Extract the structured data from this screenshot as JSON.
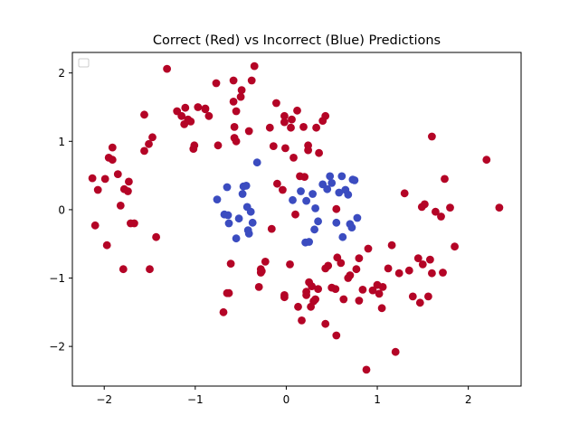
{
  "chart_data": {
    "type": "scatter",
    "title": "Correct (Red) vs Incorrect (Blue) Predictions",
    "xlabel": "",
    "ylabel": "",
    "xlim": [
      -2.35,
      2.58
    ],
    "ylim": [
      -2.58,
      2.3
    ],
    "xticks": [
      -2,
      -1,
      0,
      1,
      2
    ],
    "yticks": [
      -2,
      -1,
      0,
      1,
      2
    ],
    "grid": false,
    "legend": {
      "placement": "top-left",
      "entries": []
    },
    "colors": {
      "correct": "#b40426",
      "incorrect": "#3b4cc0"
    },
    "series": [
      {
        "values": [
          [
            -2.13,
            0.46
          ],
          [
            -2.1,
            -0.23
          ],
          [
            -2.07,
            0.29
          ],
          [
            -1.99,
            0.45
          ],
          [
            -1.97,
            -0.52
          ],
          [
            -1.95,
            0.76
          ],
          [
            -1.91,
            0.73
          ],
          [
            -1.91,
            0.91
          ],
          [
            -1.85,
            0.52
          ],
          [
            -1.82,
            0.06
          ],
          [
            -1.79,
            -0.87
          ],
          [
            -1.78,
            0.3
          ],
          [
            -1.74,
            0.27
          ],
          [
            -1.73,
            0.41
          ],
          [
            -1.71,
            -0.2
          ],
          [
            -1.67,
            -0.2
          ],
          [
            -1.56,
            1.39
          ],
          [
            -1.56,
            0.86
          ],
          [
            -1.51,
            0.96
          ],
          [
            -1.5,
            -0.87
          ],
          [
            -1.47,
            1.06
          ],
          [
            -1.43,
            -0.4
          ],
          [
            -1.31,
            2.06
          ],
          [
            -1.2,
            1.44
          ],
          [
            -1.15,
            1.37
          ],
          [
            -1.12,
            1.25
          ],
          [
            -1.11,
            1.49
          ],
          [
            -1.08,
            1.32
          ],
          [
            -1.05,
            1.29
          ],
          [
            -1.02,
            0.89
          ],
          [
            -1.01,
            0.94
          ],
          [
            -0.97,
            1.5
          ],
          [
            -0.89,
            1.47
          ],
          [
            -0.89,
            1.48
          ],
          [
            -0.85,
            1.37
          ],
          [
            -0.77,
            1.85
          ],
          [
            -0.75,
            0.94
          ],
          [
            -0.69,
            -1.5
          ],
          [
            -0.63,
            -1.22
          ],
          [
            -0.61,
            -0.79
          ],
          [
            -0.58,
            1.89
          ],
          [
            -0.58,
            1.58
          ],
          [
            -0.57,
            1.21
          ],
          [
            -0.57,
            1.05
          ],
          [
            -0.55,
            1.0
          ],
          [
            -0.55,
            1.44
          ],
          [
            -0.5,
            1.65
          ],
          [
            -0.49,
            1.75
          ],
          [
            -0.38,
            1.89
          ],
          [
            -0.35,
            2.1
          ],
          [
            -0.3,
            -1.13
          ],
          [
            -0.28,
            -0.87
          ],
          [
            -0.28,
            -0.92
          ],
          [
            -0.23,
            -0.76
          ],
          [
            -0.18,
            1.2
          ],
          [
            -0.16,
            -0.28
          ],
          [
            -0.14,
            0.93
          ],
          [
            -0.11,
            1.56
          ],
          [
            -0.1,
            0.38
          ],
          [
            -0.04,
            0.29
          ],
          [
            -0.02,
            1.37
          ],
          [
            -0.02,
            1.28
          ],
          [
            -0.01,
            0.9
          ],
          [
            -0.02,
            -1.28
          ],
          [
            -0.02,
            -1.25
          ],
          [
            0.04,
            -0.8
          ],
          [
            0.05,
            1.2
          ],
          [
            0.06,
            1.32
          ],
          [
            0.08,
            0.76
          ],
          [
            0.1,
            -0.07
          ],
          [
            0.12,
            1.45
          ],
          [
            0.15,
            0.49
          ],
          [
            0.19,
            1.21
          ],
          [
            0.2,
            0.48
          ],
          [
            0.22,
            -1.2
          ],
          [
            0.24,
            0.87
          ],
          [
            0.24,
            0.94
          ],
          [
            0.25,
            -1.06
          ],
          [
            0.27,
            -1.42
          ],
          [
            0.28,
            -1.12
          ],
          [
            0.3,
            -1.34
          ],
          [
            0.32,
            -1.31
          ],
          [
            0.33,
            1.2
          ],
          [
            0.36,
            0.83
          ],
          [
            0.4,
            1.3
          ],
          [
            0.43,
            1.37
          ],
          [
            0.43,
            -0.86
          ],
          [
            0.46,
            -0.82
          ],
          [
            0.5,
            -1.14
          ],
          [
            0.54,
            -1.16
          ],
          [
            0.56,
            -0.7
          ],
          [
            0.6,
            -0.78
          ],
          [
            0.68,
            -1.0
          ],
          [
            0.7,
            -0.96
          ],
          [
            0.77,
            -0.87
          ],
          [
            0.8,
            -0.71
          ],
          [
            0.84,
            -1.17
          ],
          [
            0.9,
            -0.57
          ],
          [
            0.95,
            -1.18
          ],
          [
            1.0,
            -1.1
          ],
          [
            1.02,
            -1.23
          ],
          [
            1.05,
            -1.44
          ],
          [
            1.06,
            -1.13
          ],
          [
            1.12,
            -0.86
          ],
          [
            1.16,
            -0.52
          ],
          [
            1.2,
            -2.08
          ],
          [
            1.24,
            -0.93
          ],
          [
            1.3,
            0.24
          ],
          [
            1.35,
            -0.89
          ],
          [
            1.39,
            -1.27
          ],
          [
            1.45,
            -0.71
          ],
          [
            1.47,
            -1.36
          ],
          [
            1.49,
            0.04
          ],
          [
            1.5,
            -0.8
          ],
          [
            1.52,
            0.08
          ],
          [
            1.56,
            -1.27
          ],
          [
            1.58,
            -0.73
          ],
          [
            1.6,
            -0.93
          ],
          [
            1.6,
            1.07
          ],
          [
            1.64,
            -0.03
          ],
          [
            1.7,
            -0.1
          ],
          [
            1.74,
            0.45
          ],
          [
            1.8,
            0.03
          ],
          [
            1.85,
            -0.54
          ],
          [
            2.2,
            0.73
          ],
          [
            2.34,
            0.03
          ],
          [
            0.88,
            -2.34
          ],
          [
            0.55,
            -1.84
          ],
          [
            0.43,
            -1.67
          ],
          [
            0.17,
            -1.62
          ],
          [
            0.13,
            -1.42
          ],
          [
            -0.65,
            -1.22
          ],
          [
            -0.41,
            1.15
          ],
          [
            0.8,
            -1.33
          ],
          [
            0.35,
            -1.16
          ],
          [
            0.22,
            -1.25
          ],
          [
            0.63,
            -1.31
          ],
          [
            -0.27,
            -0.9
          ],
          [
            1.72,
            -0.92
          ],
          [
            0.55,
            0.01
          ]
        ]
      },
      {
        "values": [
          [
            -0.76,
            0.15
          ],
          [
            -0.68,
            -0.07
          ],
          [
            -0.65,
            0.33
          ],
          [
            -0.64,
            -0.08
          ],
          [
            -0.63,
            -0.2
          ],
          [
            -0.55,
            -0.42
          ],
          [
            -0.52,
            -0.13
          ],
          [
            -0.48,
            0.23
          ],
          [
            -0.47,
            0.34
          ],
          [
            -0.44,
            0.35
          ],
          [
            -0.43,
            0.04
          ],
          [
            -0.42,
            -0.3
          ],
          [
            -0.41,
            -0.35
          ],
          [
            -0.39,
            -0.03
          ],
          [
            -0.37,
            -0.19
          ],
          [
            -0.32,
            0.69
          ],
          [
            0.07,
            0.14
          ],
          [
            0.16,
            0.27
          ],
          [
            0.21,
            -0.48
          ],
          [
            0.25,
            -0.47
          ],
          [
            0.29,
            0.23
          ],
          [
            0.31,
            -0.29
          ],
          [
            0.32,
            0.02
          ],
          [
            0.35,
            -0.17
          ],
          [
            0.4,
            0.37
          ],
          [
            0.45,
            0.3
          ],
          [
            0.48,
            0.49
          ],
          [
            0.5,
            0.39
          ],
          [
            0.55,
            -0.19
          ],
          [
            0.58,
            0.25
          ],
          [
            0.61,
            0.49
          ],
          [
            0.62,
            -0.4
          ],
          [
            0.65,
            0.29
          ],
          [
            0.68,
            0.22
          ],
          [
            0.72,
            -0.26
          ],
          [
            0.73,
            0.44
          ],
          [
            0.75,
            0.43
          ],
          [
            0.78,
            -0.12
          ],
          [
            0.7,
            -0.21
          ],
          [
            0.22,
            0.13
          ]
        ]
      }
    ]
  }
}
